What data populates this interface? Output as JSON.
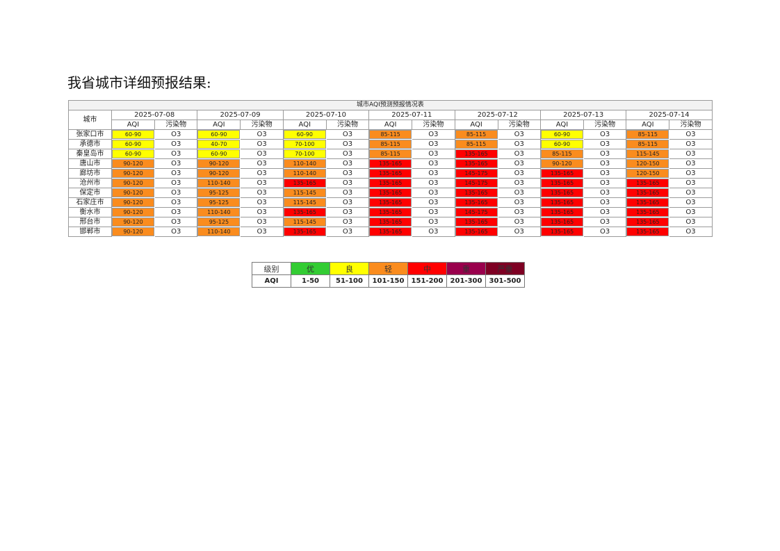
{
  "heading": "我省城市详细预报结果:",
  "table": {
    "title": "城市AQI预测预报情况表",
    "city_header": "城市",
    "aqi_header": "AQI",
    "pollutant_header": "污染物",
    "dates": [
      "2025-07-08",
      "2025-07-09",
      "2025-07-10",
      "2025-07-11",
      "2025-07-12",
      "2025-07-13",
      "2025-07-14"
    ],
    "rows": [
      {
        "city": "张家口市",
        "cells": [
          {
            "aqi": "60-90",
            "color": "#ffff00",
            "pollutant": "O3"
          },
          {
            "aqi": "60-90",
            "color": "#ffff00",
            "pollutant": "O3"
          },
          {
            "aqi": "60-90",
            "color": "#ffff00",
            "pollutant": "O3"
          },
          {
            "aqi": "85-115",
            "color": "#fa8c1e",
            "pollutant": "O3"
          },
          {
            "aqi": "85-115",
            "color": "#fa8c1e",
            "pollutant": "O3"
          },
          {
            "aqi": "60-90",
            "color": "#ffff00",
            "pollutant": "O3"
          },
          {
            "aqi": "85-115",
            "color": "#fa8c1e",
            "pollutant": "O3"
          }
        ]
      },
      {
        "city": "承德市",
        "cells": [
          {
            "aqi": "60-90",
            "color": "#ffff00",
            "pollutant": "O3"
          },
          {
            "aqi": "40-70",
            "color": "#ffff00",
            "pollutant": "O3"
          },
          {
            "aqi": "70-100",
            "color": "#ffff00",
            "pollutant": "O3"
          },
          {
            "aqi": "85-115",
            "color": "#fa8c1e",
            "pollutant": "O3"
          },
          {
            "aqi": "85-115",
            "color": "#fa8c1e",
            "pollutant": "O3"
          },
          {
            "aqi": "60-90",
            "color": "#ffff00",
            "pollutant": "O3"
          },
          {
            "aqi": "85-115",
            "color": "#fa8c1e",
            "pollutant": "O3"
          }
        ]
      },
      {
        "city": "秦皇岛市",
        "cells": [
          {
            "aqi": "60-90",
            "color": "#ffff00",
            "pollutant": "O3"
          },
          {
            "aqi": "60-90",
            "color": "#ffff00",
            "pollutant": "O3"
          },
          {
            "aqi": "70-100",
            "color": "#ffff00",
            "pollutant": "O3"
          },
          {
            "aqi": "85-115",
            "color": "#fa8c1e",
            "pollutant": "O3"
          },
          {
            "aqi": "135-165",
            "color": "#ff0000",
            "pollutant": "O3"
          },
          {
            "aqi": "85-115",
            "color": "#fa8c1e",
            "pollutant": "O3"
          },
          {
            "aqi": "115-145",
            "color": "#fa8c1e",
            "pollutant": "O3"
          }
        ]
      },
      {
        "city": "唐山市",
        "cells": [
          {
            "aqi": "90-120",
            "color": "#fa8c1e",
            "pollutant": "O3"
          },
          {
            "aqi": "90-120",
            "color": "#fa8c1e",
            "pollutant": "O3"
          },
          {
            "aqi": "110-140",
            "color": "#fa8c1e",
            "pollutant": "O3"
          },
          {
            "aqi": "135-165",
            "color": "#ff0000",
            "pollutant": "O3"
          },
          {
            "aqi": "135-165",
            "color": "#ff0000",
            "pollutant": "O3"
          },
          {
            "aqi": "90-120",
            "color": "#fa8c1e",
            "pollutant": "O3"
          },
          {
            "aqi": "120-150",
            "color": "#fa8c1e",
            "pollutant": "O3"
          }
        ]
      },
      {
        "city": "廊坊市",
        "cells": [
          {
            "aqi": "90-120",
            "color": "#fa8c1e",
            "pollutant": "O3"
          },
          {
            "aqi": "90-120",
            "color": "#fa8c1e",
            "pollutant": "O3"
          },
          {
            "aqi": "110-140",
            "color": "#fa8c1e",
            "pollutant": "O3"
          },
          {
            "aqi": "135-165",
            "color": "#ff0000",
            "pollutant": "O3"
          },
          {
            "aqi": "145-175",
            "color": "#ff0000",
            "pollutant": "O3"
          },
          {
            "aqi": "135-165",
            "color": "#ff0000",
            "pollutant": "O3"
          },
          {
            "aqi": "120-150",
            "color": "#fa8c1e",
            "pollutant": "O3"
          }
        ]
      },
      {
        "city": "沧州市",
        "cells": [
          {
            "aqi": "90-120",
            "color": "#fa8c1e",
            "pollutant": "O3"
          },
          {
            "aqi": "110-140",
            "color": "#fa8c1e",
            "pollutant": "O3"
          },
          {
            "aqi": "135-165",
            "color": "#ff0000",
            "pollutant": "O3"
          },
          {
            "aqi": "135-165",
            "color": "#ff0000",
            "pollutant": "O3"
          },
          {
            "aqi": "145-175",
            "color": "#ff0000",
            "pollutant": "O3"
          },
          {
            "aqi": "135-165",
            "color": "#ff0000",
            "pollutant": "O3"
          },
          {
            "aqi": "135-165",
            "color": "#ff0000",
            "pollutant": "O3"
          }
        ]
      },
      {
        "city": "保定市",
        "cells": [
          {
            "aqi": "90-120",
            "color": "#fa8c1e",
            "pollutant": "O3"
          },
          {
            "aqi": "95-125",
            "color": "#fa8c1e",
            "pollutant": "O3"
          },
          {
            "aqi": "115-145",
            "color": "#fa8c1e",
            "pollutant": "O3"
          },
          {
            "aqi": "135-165",
            "color": "#ff0000",
            "pollutant": "O3"
          },
          {
            "aqi": "135-165",
            "color": "#ff0000",
            "pollutant": "O3"
          },
          {
            "aqi": "135-165",
            "color": "#ff0000",
            "pollutant": "O3"
          },
          {
            "aqi": "135-165",
            "color": "#ff0000",
            "pollutant": "O3"
          }
        ]
      },
      {
        "city": "石家庄市",
        "cells": [
          {
            "aqi": "90-120",
            "color": "#fa8c1e",
            "pollutant": "O3"
          },
          {
            "aqi": "95-125",
            "color": "#fa8c1e",
            "pollutant": "O3"
          },
          {
            "aqi": "115-145",
            "color": "#fa8c1e",
            "pollutant": "O3"
          },
          {
            "aqi": "135-165",
            "color": "#ff0000",
            "pollutant": "O3"
          },
          {
            "aqi": "135-165",
            "color": "#ff0000",
            "pollutant": "O3"
          },
          {
            "aqi": "135-165",
            "color": "#ff0000",
            "pollutant": "O3"
          },
          {
            "aqi": "135-165",
            "color": "#ff0000",
            "pollutant": "O3"
          }
        ]
      },
      {
        "city": "衡水市",
        "cells": [
          {
            "aqi": "90-120",
            "color": "#fa8c1e",
            "pollutant": "O3"
          },
          {
            "aqi": "110-140",
            "color": "#fa8c1e",
            "pollutant": "O3"
          },
          {
            "aqi": "135-165",
            "color": "#ff0000",
            "pollutant": "O3"
          },
          {
            "aqi": "135-165",
            "color": "#ff0000",
            "pollutant": "O3"
          },
          {
            "aqi": "145-175",
            "color": "#ff0000",
            "pollutant": "O3"
          },
          {
            "aqi": "135-165",
            "color": "#ff0000",
            "pollutant": "O3"
          },
          {
            "aqi": "135-165",
            "color": "#ff0000",
            "pollutant": "O3"
          }
        ]
      },
      {
        "city": "邢台市",
        "cells": [
          {
            "aqi": "90-120",
            "color": "#fa8c1e",
            "pollutant": "O3"
          },
          {
            "aqi": "95-125",
            "color": "#fa8c1e",
            "pollutant": "O3"
          },
          {
            "aqi": "115-145",
            "color": "#fa8c1e",
            "pollutant": "O3"
          },
          {
            "aqi": "135-165",
            "color": "#ff0000",
            "pollutant": "O3"
          },
          {
            "aqi": "135-165",
            "color": "#ff0000",
            "pollutant": "O3"
          },
          {
            "aqi": "135-165",
            "color": "#ff0000",
            "pollutant": "O3"
          },
          {
            "aqi": "135-165",
            "color": "#ff0000",
            "pollutant": "O3"
          }
        ]
      },
      {
        "city": "邯郸市",
        "cells": [
          {
            "aqi": "90-120",
            "color": "#fa8c1e",
            "pollutant": "O3"
          },
          {
            "aqi": "110-140",
            "color": "#fa8c1e",
            "pollutant": "O3"
          },
          {
            "aqi": "135-165",
            "color": "#ff0000",
            "pollutant": "O3"
          },
          {
            "aqi": "135-165",
            "color": "#ff0000",
            "pollutant": "O3"
          },
          {
            "aqi": "135-165",
            "color": "#ff0000",
            "pollutant": "O3"
          },
          {
            "aqi": "135-165",
            "color": "#ff0000",
            "pollutant": "O3"
          },
          {
            "aqi": "135-165",
            "color": "#ff0000",
            "pollutant": "O3"
          }
        ]
      }
    ]
  },
  "legend": {
    "level_header": "级别",
    "aqi_header": "AQI",
    "levels": [
      {
        "name": "优",
        "range": "1-50",
        "color": "#33cc33"
      },
      {
        "name": "良",
        "range": "51-100",
        "color": "#ffff00"
      },
      {
        "name": "轻",
        "range": "101-150",
        "color": "#fa8c1e"
      },
      {
        "name": "中",
        "range": "151-200",
        "color": "#ff0000"
      },
      {
        "name": "重",
        "range": "201-300",
        "color": "#99004c"
      },
      {
        "name": "严重",
        "range": "301-500",
        "color": "#7e0023"
      }
    ]
  }
}
